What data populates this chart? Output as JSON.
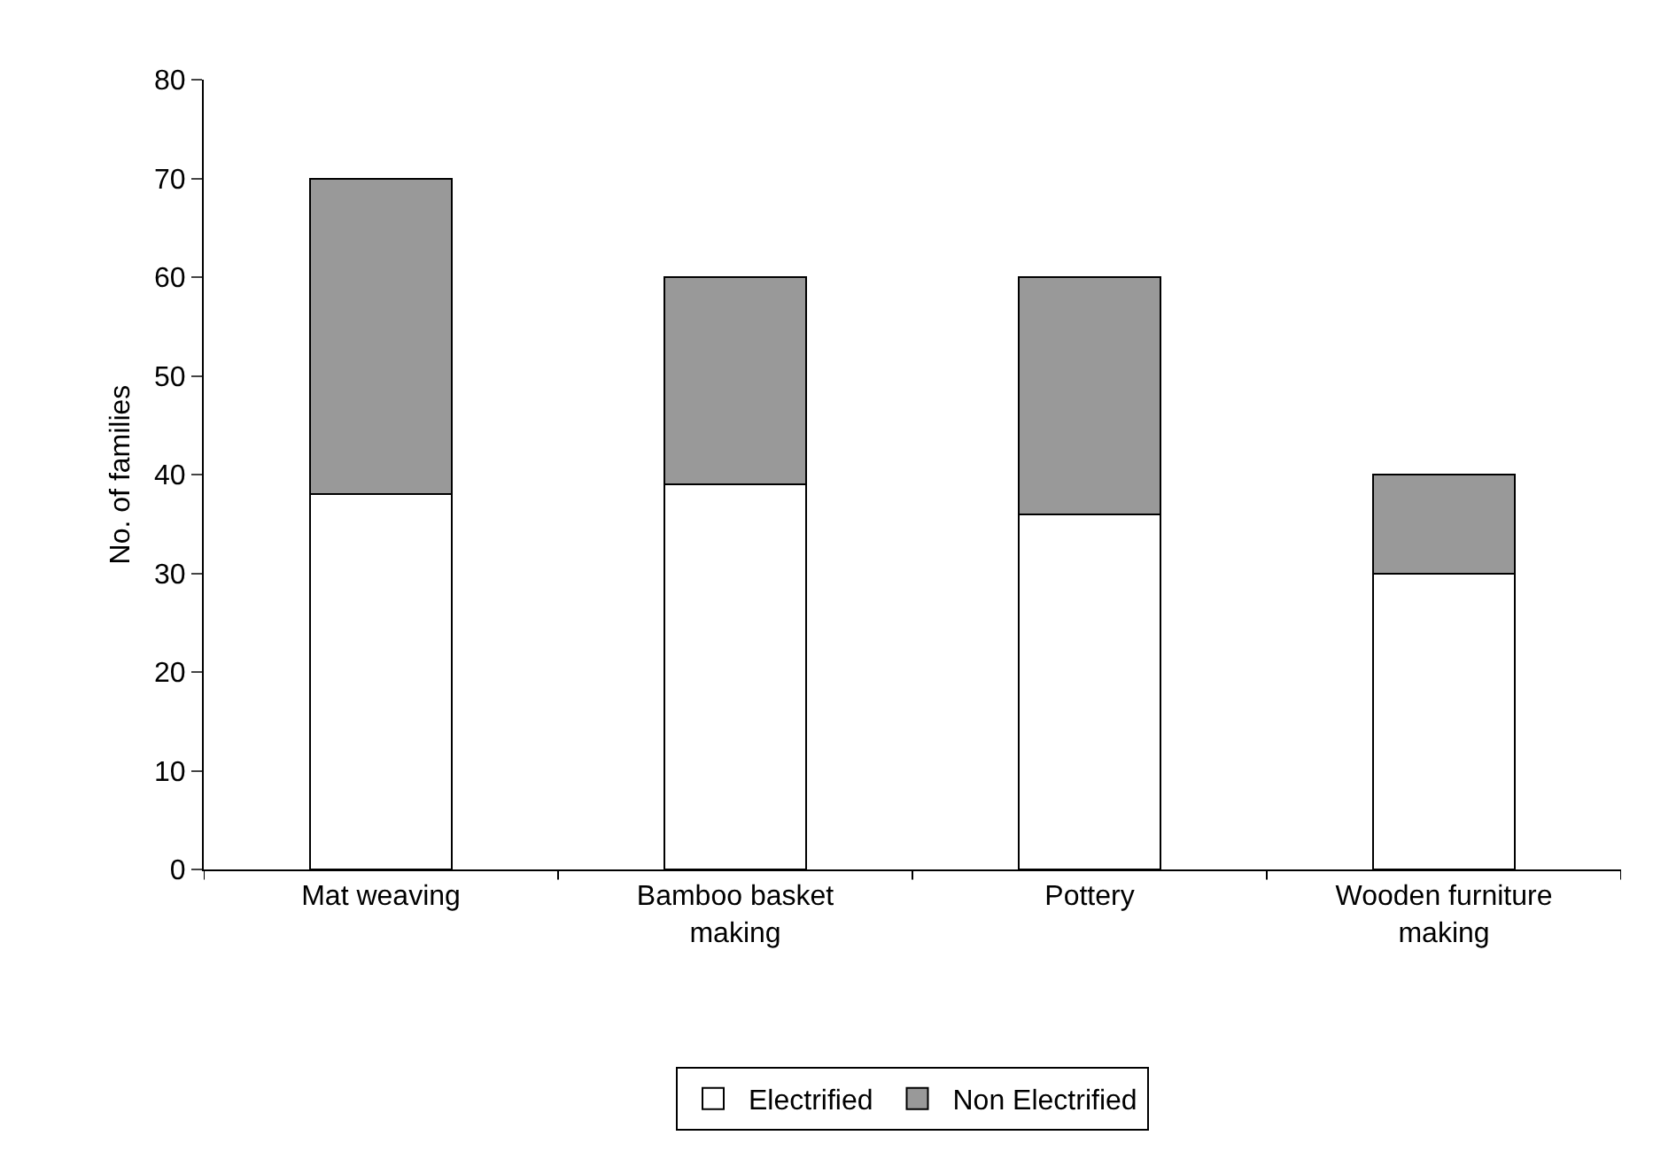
{
  "chart_data": {
    "type": "bar",
    "stacked": true,
    "ylabel": "No. of families",
    "categories": [
      "Mat weaving",
      "Bamboo basket making",
      "Pottery",
      "Wooden furniture making"
    ],
    "series": [
      {
        "name": "Electrified",
        "color": "#ffffff",
        "values": [
          38,
          39,
          36,
          30
        ]
      },
      {
        "name": "Non Electrified",
        "color": "#999999",
        "values": [
          32,
          21,
          24,
          10
        ]
      }
    ],
    "ylim": [
      0,
      80
    ],
    "yticks": [
      0,
      10,
      20,
      30,
      40,
      50,
      60,
      70,
      80
    ],
    "grid": false,
    "legend": "bottom"
  }
}
